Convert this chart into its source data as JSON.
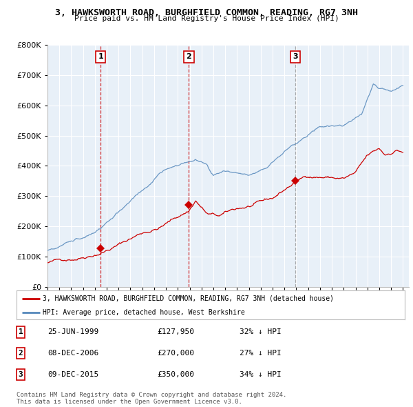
{
  "title": "3, HAWKSWORTH ROAD, BURGHFIELD COMMON, READING, RG7 3NH",
  "subtitle": "Price paid vs. HM Land Registry's House Price Index (HPI)",
  "ylim": [
    0,
    800000
  ],
  "yticks": [
    0,
    100000,
    200000,
    300000,
    400000,
    500000,
    600000,
    700000,
    800000
  ],
  "ytick_labels": [
    "£0",
    "£100K",
    "£200K",
    "£300K",
    "£400K",
    "£500K",
    "£600K",
    "£700K",
    "£800K"
  ],
  "sale_dates": [
    1999.48,
    2006.93,
    2015.93
  ],
  "sale_prices": [
    127950,
    270000,
    350000
  ],
  "sale_labels": [
    "1",
    "2",
    "3"
  ],
  "vline_colors": [
    "#cc0000",
    "#cc0000",
    "#999999"
  ],
  "legend_red": "3, HAWKSWORTH ROAD, BURGHFIELD COMMON, READING, RG7 3NH (detached house)",
  "legend_blue": "HPI: Average price, detached house, West Berkshire",
  "table_rows": [
    [
      "1",
      "25-JUN-1999",
      "£127,950",
      "32% ↓ HPI"
    ],
    [
      "2",
      "08-DEC-2006",
      "£270,000",
      "27% ↓ HPI"
    ],
    [
      "3",
      "09-DEC-2015",
      "£350,000",
      "34% ↓ HPI"
    ]
  ],
  "footnote": "Contains HM Land Registry data © Crown copyright and database right 2024.\nThis data is licensed under the Open Government Licence v3.0.",
  "red_color": "#cc0000",
  "blue_color": "#5588bb",
  "vline_color": "#cc0000",
  "grid_color": "#cccccc",
  "bg_color": "#ffffff",
  "chart_bg": "#e8f0f8"
}
